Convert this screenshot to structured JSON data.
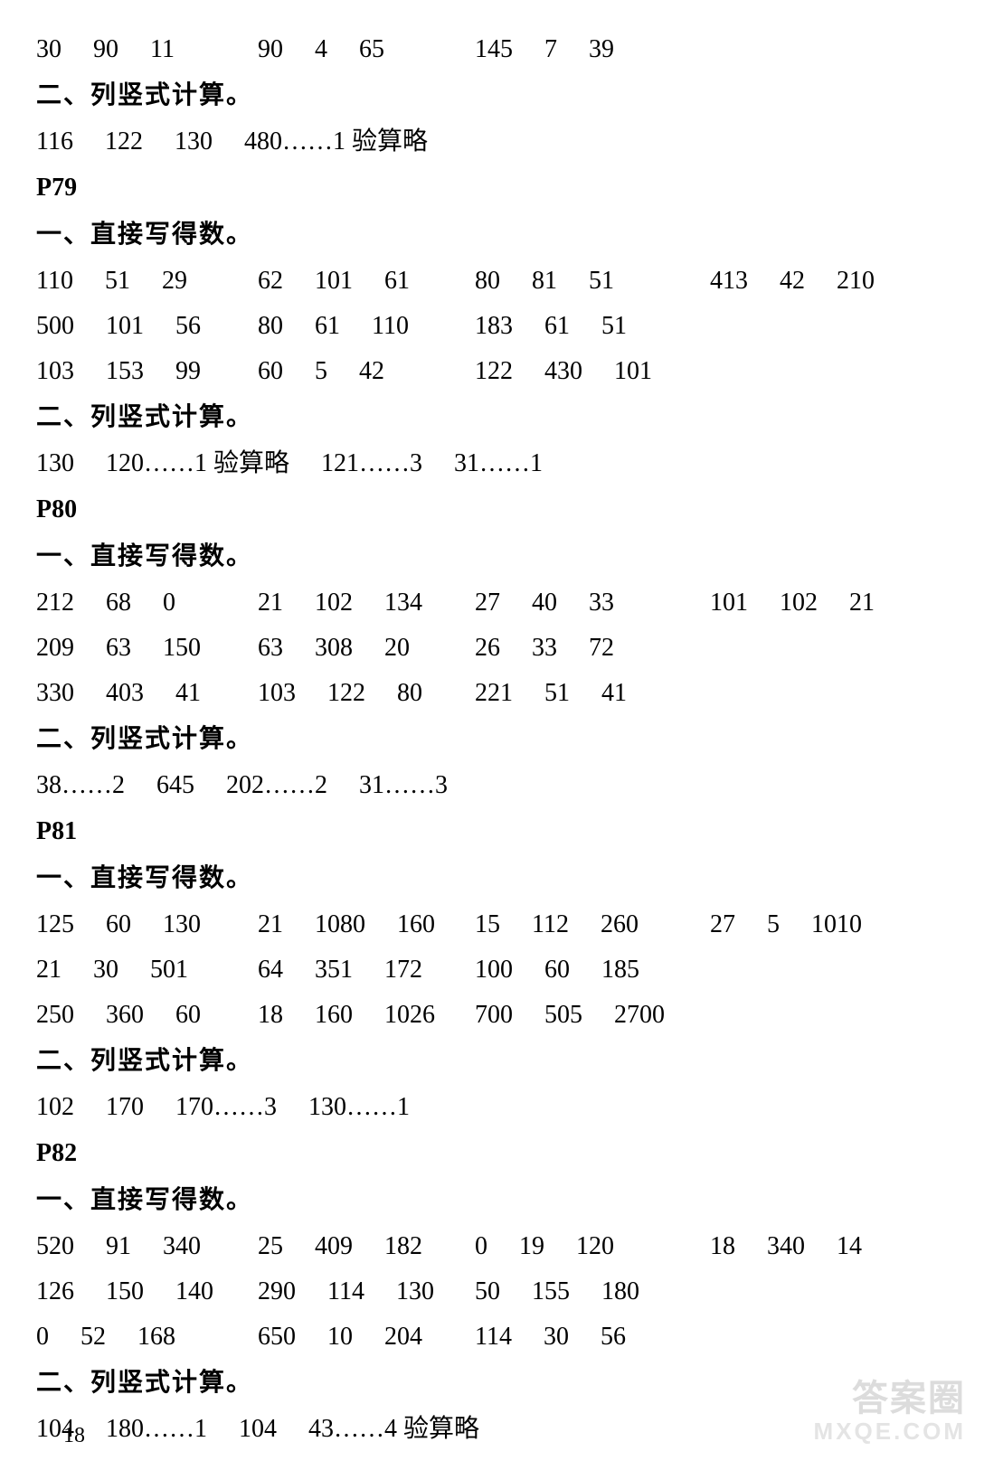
{
  "topLine": {
    "c1": "30  90  11",
    "c2": "90  4  65",
    "c3": "145  7  39",
    "c4": ""
  },
  "topH2": "二、列竖式计算。",
  "topH2_line": "116  122  130  480……1 验算略",
  "p79": {
    "label": "P79",
    "h1": "一、直接写得数。",
    "r1": {
      "c1": "110  51  29",
      "c2": "62  101  61",
      "c3": "80  81  51",
      "c4": "413  42  210"
    },
    "r2": {
      "c1": "500  101  56",
      "c2": "80  61  110",
      "c3": "183  61  51",
      "c4": ""
    },
    "r3": {
      "c1": "103  153  99",
      "c2": "60  5  42",
      "c3": "122  430  101",
      "c4": ""
    },
    "h2": "二、列竖式计算。",
    "h2line": "130  120……1 验算略  121……3  31……1"
  },
  "p80": {
    "label": "P80",
    "h1": "一、直接写得数。",
    "r1": {
      "c1": "212  68  0",
      "c2": "21  102  134",
      "c3": "27  40  33",
      "c4": "101  102  21"
    },
    "r2": {
      "c1": "209  63  150",
      "c2": "63  308  20",
      "c3": "26  33  72",
      "c4": ""
    },
    "r3": {
      "c1": "330  403  41",
      "c2": "103  122  80",
      "c3": "221  51  41",
      "c4": ""
    },
    "h2": "二、列竖式计算。",
    "h2line": "38……2  645  202……2  31……3"
  },
  "p81": {
    "label": "P81",
    "h1": "一、直接写得数。",
    "r1": {
      "c1": "125  60  130",
      "c2": "21  1080  160",
      "c3": "15  112  260",
      "c4": "27  5  1010"
    },
    "r2": {
      "c1": "21  30  501",
      "c2": "64  351  172",
      "c3": "100  60  185",
      "c4": ""
    },
    "r3": {
      "c1": "250  360  60",
      "c2": "18  160  1026",
      "c3": "700  505  2700",
      "c4": ""
    },
    "h2": "二、列竖式计算。",
    "h2line": "102  170  170……3  130……1"
  },
  "p82": {
    "label": "P82",
    "h1": "一、直接写得数。",
    "r1": {
      "c1": "520  91  340",
      "c2": "25  409  182",
      "c3": "0  19  120",
      "c4": "18  340  14"
    },
    "r2": {
      "c1": "126  150  140",
      "c2": "290  114  130",
      "c3": "50  155  180",
      "c4": ""
    },
    "r3": {
      "c1": "0  52  168",
      "c2": "650  10  204",
      "c3": "114  30  56",
      "c4": ""
    },
    "h2": "二、列竖式计算。",
    "h2line": "104  180……1  104  43……4 验算略"
  },
  "pageNumber": "18",
  "watermark": {
    "l1": "答案圈",
    "l2": "MXQE.COM"
  }
}
